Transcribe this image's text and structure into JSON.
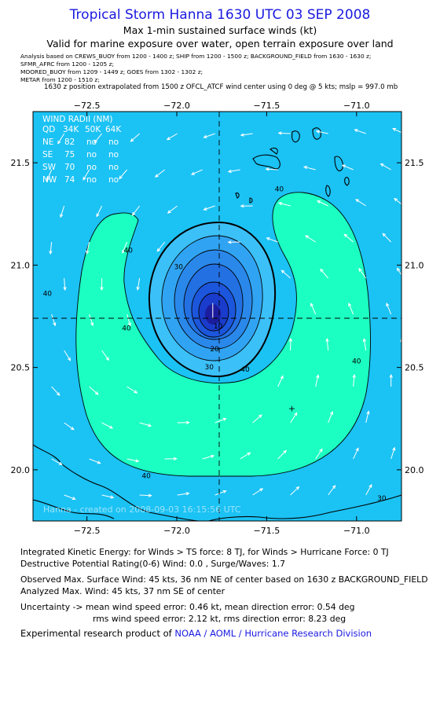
{
  "header": {
    "title": "Tropical Storm Hanna 1630 UTC 03 SEP 2008",
    "subtitle1": "Max 1-min sustained surface winds (kt)",
    "subtitle2": "Valid for marine exposure over water, open terrain exposure over land",
    "sources": [
      "Analysis based on   CREWS_BUOY from 1200 - 1400 z;   SHIP from 1200 - 1500 z;   BACKGROUND_FIELD from 1630 - 1630 z;",
      "SFMR_AFRC from 1200 - 1205 z;",
      "MOORED_BUOY from 1209 - 1449 z;   GOES from 1302 - 1302 z;",
      "METAR from 1200 - 1510 z;"
    ],
    "position_note": "1630 z position extrapolated from 1500 z OFCL_ATCF wind center using 0 deg @ 5 kts; mslp = 997.0 mb"
  },
  "map": {
    "lon_range": [
      -72.8,
      -70.75
    ],
    "lat_range": [
      19.75,
      21.75
    ],
    "lon_ticks": [
      -72.5,
      -72.0,
      -71.5,
      -71.0
    ],
    "lon_tick_labels": [
      "−72.5",
      "−72.0",
      "−71.5",
      "−71.0"
    ],
    "lat_ticks": [
      20.0,
      20.5,
      21.0,
      21.5
    ],
    "lat_tick_labels": [
      "20.0",
      "20.5",
      "21.0",
      "21.5"
    ],
    "center": {
      "lon": -71.8,
      "lat": 20.73
    },
    "plus_marker": {
      "lon": -71.36,
      "lat": 20.3
    },
    "contour_labels": [
      {
        "text": "40",
        "lon": -72.27,
        "lat": 21.06
      },
      {
        "text": "40",
        "lon": -71.43,
        "lat": 21.36
      },
      {
        "text": "40",
        "lon": -72.72,
        "lat": 20.85
      },
      {
        "text": "40",
        "lon": -72.28,
        "lat": 20.68
      },
      {
        "text": "40",
        "lon": -71.62,
        "lat": 20.48
      },
      {
        "text": "40",
        "lon": -71.0,
        "lat": 20.52
      },
      {
        "text": "40",
        "lon": -72.17,
        "lat": 19.96
      },
      {
        "text": "30",
        "lon": -71.99,
        "lat": 20.98
      },
      {
        "text": "30",
        "lon": -71.82,
        "lat": 20.49
      },
      {
        "text": "30",
        "lon": -70.86,
        "lat": 19.85
      },
      {
        "text": "20",
        "lon": -71.79,
        "lat": 20.58
      },
      {
        "text": "10",
        "lon": -71.77,
        "lat": 20.69
      }
    ],
    "colors": {
      "ocean": "#1bc2f4",
      "gale": "#1cffc2",
      "ring1": "#3cc0f8",
      "ring2": "#30a4f2",
      "ring3": "#2a88ea",
      "ring4": "#2370e3",
      "ring5": "#1c56dc",
      "ring6": "#1a3ccc",
      "core": "#1c1c9e",
      "contour": "#000000",
      "vector": "#ffffff"
    },
    "wind_radii": {
      "title": "WIND RADII (NM)",
      "header": [
        "QD",
        "34K",
        "50K",
        "64K"
      ],
      "rows": [
        [
          "NE",
          "82",
          "no",
          "no"
        ],
        [
          "SE",
          "75",
          "no",
          "no"
        ],
        [
          "SW",
          "70",
          "no",
          "no"
        ],
        [
          "NW",
          "74",
          "no",
          "no"
        ]
      ]
    },
    "credit": "Hanna - created on 2008-09-03 16:15:56 UTC"
  },
  "footer": {
    "ike": "Integrated Kinetic Energy:  for Winds > TS force: 8 TJ,  for Winds > Hurricane Force: 0 TJ",
    "dpr": "Destructive Potential Rating(0-6)   Wind: 0.0 , Surge/Waves: 1.7",
    "observed": "Observed Max. Surface Wind: 45 kts, 36 nm NE of center based on 1630 z BACKGROUND_FIELD",
    "analyzed": "Analyzed Max. Wind: 45 kts, 37 nm SE of center",
    "uncertainty1": "Uncertainty -> mean wind speed error: 0.46 kt,   mean direction error: 0.54 deg",
    "uncertainty2": "rms wind speed error: 2.12 kt,   rms direction error: 8.23 deg",
    "experimental_prefix": "Experimental research product of ",
    "experimental_org": "NOAA / AOML / Hurricane Research Division"
  }
}
